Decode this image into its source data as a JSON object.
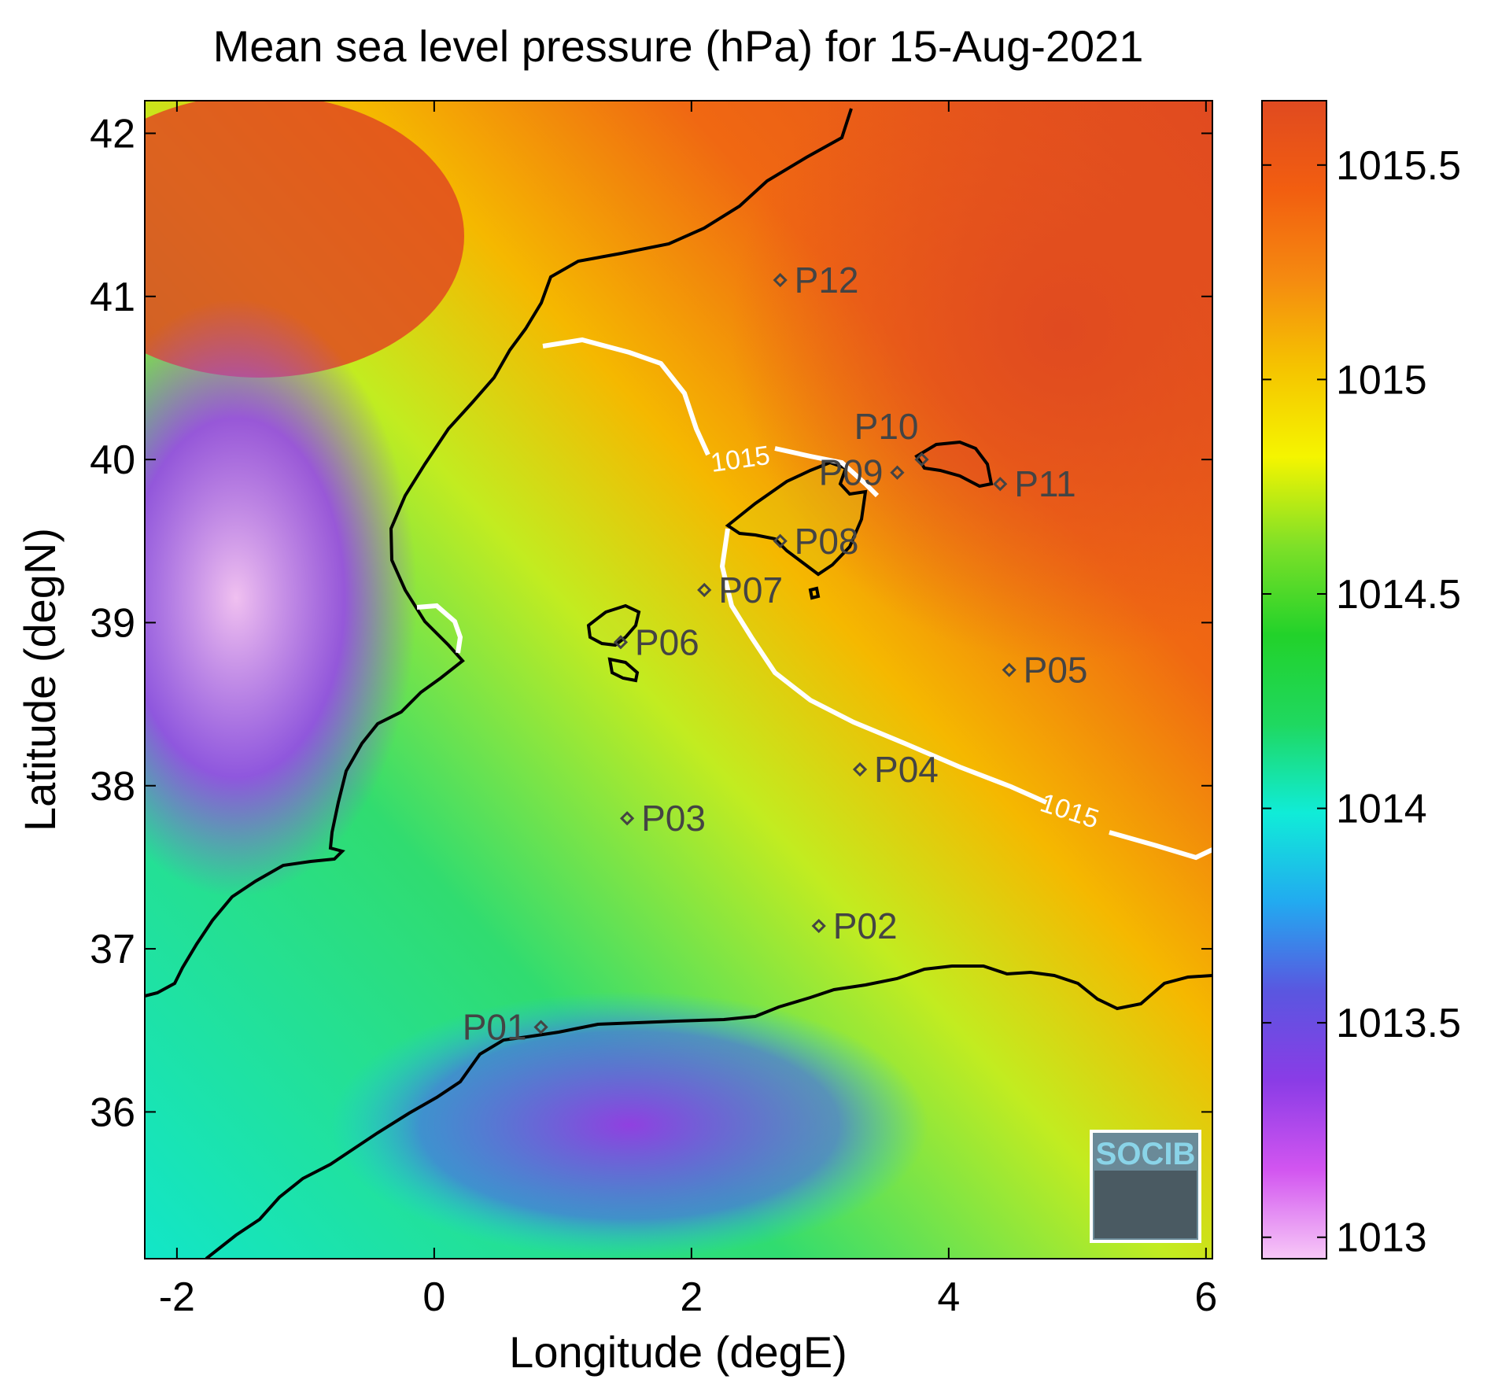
{
  "title": "Mean sea level pressure (hPa) for 15-Aug-2021",
  "axes": {
    "xlabel": "Longitude (degE)",
    "ylabel": "Latitude (degN)",
    "xlim": [
      -2.25,
      6.05
    ],
    "ylim": [
      35.1,
      42.2
    ],
    "xticks": [
      {
        "value": -2,
        "label": "-2"
      },
      {
        "value": 0,
        "label": "0"
      },
      {
        "value": 2,
        "label": "2"
      },
      {
        "value": 4,
        "label": "4"
      },
      {
        "value": 6,
        "label": "6"
      }
    ],
    "yticks": [
      {
        "value": 36,
        "label": "36"
      },
      {
        "value": 37,
        "label": "37"
      },
      {
        "value": 38,
        "label": "38"
      },
      {
        "value": 39,
        "label": "39"
      },
      {
        "value": 40,
        "label": "40"
      },
      {
        "value": 41,
        "label": "41"
      },
      {
        "value": 42,
        "label": "42"
      }
    ]
  },
  "colorbar": {
    "range": [
      1012.95,
      1015.65
    ],
    "ticks": [
      {
        "value": 1013,
        "label": "1013"
      },
      {
        "value": 1013.5,
        "label": "1013.5"
      },
      {
        "value": 1014,
        "label": "1014"
      },
      {
        "value": 1014.5,
        "label": "1014.5"
      },
      {
        "value": 1015,
        "label": "1015"
      },
      {
        "value": 1015.5,
        "label": "1015.5"
      }
    ],
    "colors": [
      "#f7c8f7",
      "#d255f0",
      "#8a3ce6",
      "#5a56e0",
      "#22aaf0",
      "#10ecd8",
      "#1fd860",
      "#22d22a",
      "#7ee028",
      "#f5f500",
      "#f5c400",
      "#f58a10",
      "#f25e10",
      "#e04a20"
    ]
  },
  "contour_label": "1015",
  "stations": [
    {
      "id": "P01",
      "lon": 0.83,
      "lat": 36.52
    },
    {
      "id": "P02",
      "lon": 2.99,
      "lat": 37.14
    },
    {
      "id": "P03",
      "lon": 1.5,
      "lat": 37.8
    },
    {
      "id": "P04",
      "lon": 3.31,
      "lat": 38.1
    },
    {
      "id": "P05",
      "lon": 4.47,
      "lat": 38.71
    },
    {
      "id": "P06",
      "lon": 1.45,
      "lat": 38.88
    },
    {
      "id": "P07",
      "lon": 2.1,
      "lat": 39.2
    },
    {
      "id": "P08",
      "lon": 2.69,
      "lat": 39.5
    },
    {
      "id": "P09",
      "lon": 3.6,
      "lat": 39.92
    },
    {
      "id": "P10",
      "lon": 3.79,
      "lat": 40.0
    },
    {
      "id": "P11",
      "lon": 4.4,
      "lat": 39.85
    },
    {
      "id": "P12",
      "lon": 2.69,
      "lat": 41.1
    }
  ],
  "logo_text": "SOCIB"
}
